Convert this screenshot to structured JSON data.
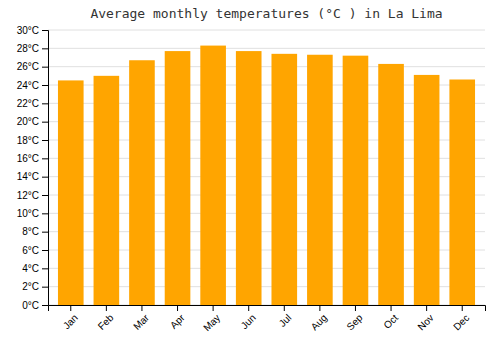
{
  "chart_data": {
    "type": "bar",
    "title": "Average monthly temperatures (°C ) in La Lima",
    "categories": [
      "Jan",
      "Feb",
      "Mar",
      "Apr",
      "May",
      "Jun",
      "Jul",
      "Aug",
      "Sep",
      "Oct",
      "Nov",
      "Dec"
    ],
    "values": [
      24.5,
      25.0,
      26.7,
      27.7,
      28.3,
      27.7,
      27.4,
      27.3,
      27.2,
      26.3,
      25.1,
      24.6
    ],
    "color": "#FFA500",
    "ylim": [
      0,
      30
    ],
    "yticks": [
      {
        "value": 0,
        "label": "0°C"
      },
      {
        "value": 2,
        "label": "2°C"
      },
      {
        "value": 4,
        "label": "4°C"
      },
      {
        "value": 6,
        "label": "6°C"
      },
      {
        "value": 8,
        "label": "8°C"
      },
      {
        "value": 10,
        "label": "10°C"
      },
      {
        "value": 12,
        "label": "12°C"
      },
      {
        "value": 14,
        "label": "14°C"
      },
      {
        "value": 16,
        "label": "16°C"
      },
      {
        "value": 18,
        "label": "18°C"
      },
      {
        "value": 20,
        "label": "20°C"
      },
      {
        "value": 22,
        "label": "22°C"
      },
      {
        "value": 24,
        "label": "24°C"
      },
      {
        "value": 26,
        "label": "26°C"
      },
      {
        "value": 28,
        "label": "28°C"
      },
      {
        "value": 30,
        "label": "30°C"
      }
    ],
    "grid": true
  }
}
